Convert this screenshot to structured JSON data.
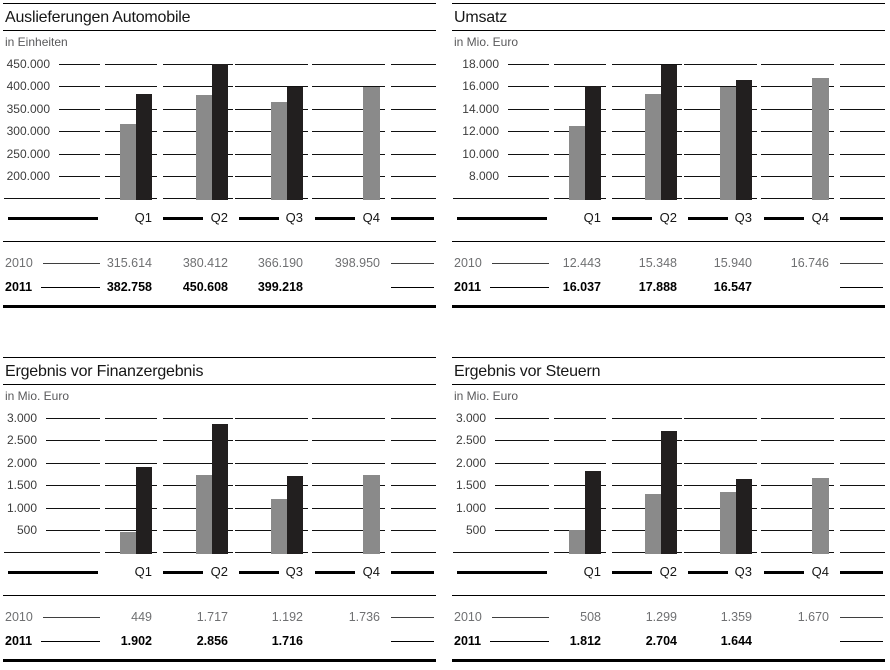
{
  "chart_data": [
    {
      "type": "bar",
      "title": "Auslieferungen Automobile",
      "unit_label": "in Einheiten",
      "categories": [
        "Q1",
        "Q2",
        "Q3",
        "Q4"
      ],
      "series": [
        {
          "name": "2010",
          "color": "#8a8a8a",
          "values": [
            315614,
            380412,
            366190,
            398950
          ],
          "display": [
            "315.614",
            "380.412",
            "366.190",
            "398.950"
          ]
        },
        {
          "name": "2011",
          "color": "#221f1f",
          "values": [
            382758,
            450608,
            399218,
            null
          ],
          "display": [
            "382.758",
            "450.608",
            "399.218",
            ""
          ]
        }
      ],
      "y_axis": {
        "ticks": [
          "450.000",
          "400.000",
          "350.000",
          "300.000",
          "250.000",
          "200.000"
        ],
        "top_value": 450000,
        "step": 50000,
        "baseline_value": 150000,
        "grid": true,
        "legend": "values-table-below"
      }
    },
    {
      "type": "bar",
      "title": "Umsatz",
      "unit_label": "in Mio. Euro",
      "categories": [
        "Q1",
        "Q2",
        "Q3",
        "Q4"
      ],
      "series": [
        {
          "name": "2010",
          "color": "#8a8a8a",
          "values": [
            12443,
            15348,
            15940,
            16746
          ],
          "display": [
            "12.443",
            "15.348",
            "15.940",
            "16.746"
          ]
        },
        {
          "name": "2011",
          "color": "#221f1f",
          "values": [
            16037,
            17888,
            16547,
            null
          ],
          "display": [
            "16.037",
            "17.888",
            "16.547",
            ""
          ]
        }
      ],
      "y_axis": {
        "ticks": [
          "18.000",
          "16.000",
          "14.000",
          "12.000",
          "10.000",
          "8.000"
        ],
        "top_value": 18000,
        "step": 2000,
        "baseline_value": 6000,
        "grid": true,
        "legend": "values-table-below"
      }
    },
    {
      "type": "bar",
      "title": "Ergebnis vor Finanzergebnis",
      "unit_label": "in Mio. Euro",
      "categories": [
        "Q1",
        "Q2",
        "Q3",
        "Q4"
      ],
      "series": [
        {
          "name": "2010",
          "color": "#8a8a8a",
          "values": [
            449,
            1717,
            1192,
            1736
          ],
          "display": [
            "449",
            "1.717",
            "1.192",
            "1.736"
          ]
        },
        {
          "name": "2011",
          "color": "#221f1f",
          "values": [
            1902,
            2856,
            1716,
            null
          ],
          "display": [
            "1.902",
            "2.856",
            "1.716",
            ""
          ]
        }
      ],
      "y_axis": {
        "ticks": [
          "3.000",
          "2.500",
          "2.000",
          "1.500",
          "1.000",
          "500"
        ],
        "top_value": 3000,
        "step": 500,
        "baseline_value": 0,
        "grid": true,
        "legend": "values-table-below"
      }
    },
    {
      "type": "bar",
      "title": "Ergebnis vor Steuern",
      "unit_label": "in Mio. Euro",
      "categories": [
        "Q1",
        "Q2",
        "Q3",
        "Q4"
      ],
      "series": [
        {
          "name": "2010",
          "color": "#8a8a8a",
          "values": [
            508,
            1299,
            1359,
            1670
          ],
          "display": [
            "508",
            "1.299",
            "1.359",
            "1.670"
          ]
        },
        {
          "name": "2011",
          "color": "#221f1f",
          "values": [
            1812,
            2704,
            1644,
            null
          ],
          "display": [
            "1.812",
            "2.704",
            "1.644",
            ""
          ]
        }
      ],
      "y_axis": {
        "ticks": [
          "3.000",
          "2.500",
          "2.000",
          "1.500",
          "1.000",
          "500"
        ],
        "top_value": 3000,
        "step": 500,
        "baseline_value": 0,
        "grid": true,
        "legend": "values-table-below"
      }
    }
  ]
}
